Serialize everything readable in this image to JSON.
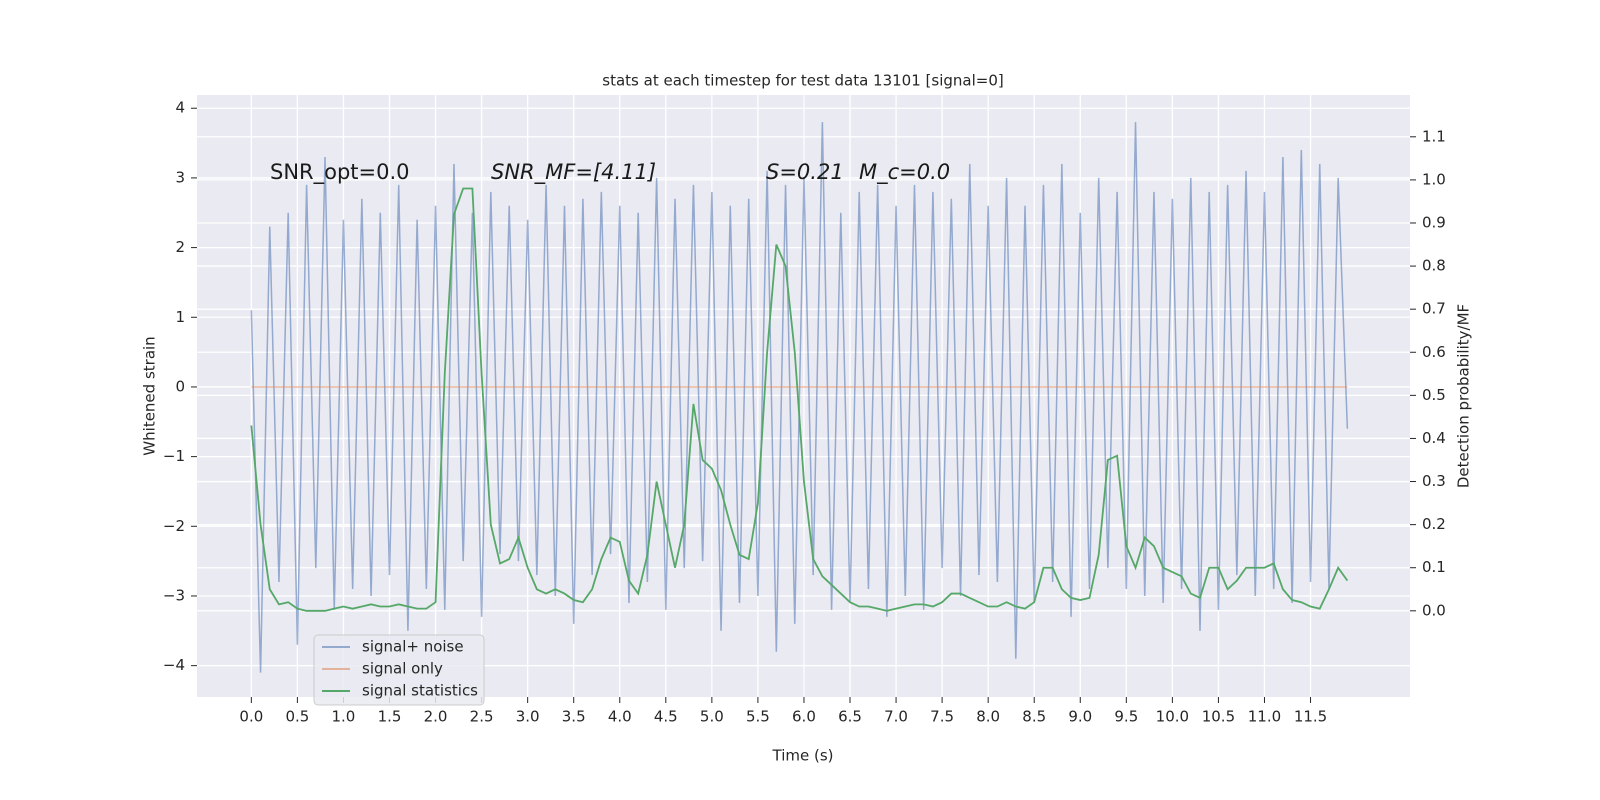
{
  "chart_data": {
    "type": "line",
    "title": "stats at each timestep for test data 13101 [signal=0]",
    "xlabel": "Time (s)",
    "ylabel": "Whitened strain",
    "y2label": "Detection probability/MF",
    "annotations": [
      "SNR_opt=0.0",
      "SNR_MF=[4.11]",
      "S=0.21",
      "M_c=0.0"
    ],
    "grid": true,
    "legend": "lower left",
    "xlim": [
      -0.59,
      12.58
    ],
    "ylim": [
      -4.45,
      4.19
    ],
    "y2lim": [
      -0.2,
      1.197
    ],
    "xticks": [
      {
        "value": 0,
        "label": "0.0"
      },
      {
        "value": 0.5,
        "label": "0.5"
      },
      {
        "value": 1,
        "label": "1.0"
      },
      {
        "value": 1.5,
        "label": "1.5"
      },
      {
        "value": 2,
        "label": "2.0"
      },
      {
        "value": 2.5,
        "label": "2.5"
      },
      {
        "value": 3,
        "label": "3.0"
      },
      {
        "value": 3.5,
        "label": "3.5"
      },
      {
        "value": 4,
        "label": "4.0"
      },
      {
        "value": 4.5,
        "label": "4.5"
      },
      {
        "value": 5,
        "label": "5.0"
      },
      {
        "value": 5.5,
        "label": "5.5"
      },
      {
        "value": 6,
        "label": "6.0"
      },
      {
        "value": 6.5,
        "label": "6.5"
      },
      {
        "value": 7,
        "label": "7.0"
      },
      {
        "value": 7.5,
        "label": "7.5"
      },
      {
        "value": 8,
        "label": "8.0"
      },
      {
        "value": 8.5,
        "label": "8.5"
      },
      {
        "value": 9,
        "label": "9.0"
      },
      {
        "value": 9.5,
        "label": "9.5"
      },
      {
        "value": 10,
        "label": "10.0"
      },
      {
        "value": 10.5,
        "label": "10.5"
      },
      {
        "value": 11,
        "label": "11.0"
      },
      {
        "value": 11.5,
        "label": "11.5"
      }
    ],
    "yticks": [
      {
        "value": -4,
        "label": "−4"
      },
      {
        "value": -3,
        "label": "−3"
      },
      {
        "value": -2,
        "label": "−2"
      },
      {
        "value": -1,
        "label": "−1"
      },
      0,
      1,
      2,
      3,
      4
    ],
    "y2ticks": [
      {
        "value": 0,
        "label": "0.0"
      },
      {
        "value": 0.1,
        "label": "0.1"
      },
      {
        "value": 0.2,
        "label": "0.2"
      },
      {
        "value": 0.3,
        "label": "0.3"
      },
      {
        "value": 0.4,
        "label": "0.4"
      },
      {
        "value": 0.5,
        "label": "0.5"
      },
      {
        "value": 0.6,
        "label": "0.6"
      },
      {
        "value": 0.7,
        "label": "0.7"
      },
      {
        "value": 0.8,
        "label": "0.8"
      },
      {
        "value": 0.9,
        "label": "0.9"
      },
      {
        "value": 1,
        "label": "1.0"
      },
      {
        "value": 1.1,
        "label": "1.1"
      }
    ],
    "x": [
      0,
      0.1,
      0.2,
      0.3,
      0.4,
      0.5,
      0.6,
      0.7,
      0.8,
      0.9,
      1,
      1.1,
      1.2,
      1.3,
      1.4,
      1.5,
      1.6,
      1.7,
      1.8,
      1.9,
      2,
      2.1,
      2.2,
      2.3,
      2.4,
      2.5,
      2.6,
      2.7,
      2.8,
      2.9,
      3,
      3.1,
      3.2,
      3.3,
      3.4,
      3.5,
      3.6,
      3.7,
      3.8,
      3.9,
      4,
      4.1,
      4.2,
      4.3,
      4.4,
      4.5,
      4.6,
      4.7,
      4.8,
      4.9,
      5,
      5.1,
      5.2,
      5.3,
      5.4,
      5.5,
      5.6,
      5.7,
      5.8,
      5.9,
      6,
      6.1,
      6.2,
      6.3,
      6.4,
      6.5,
      6.6,
      6.7,
      6.8,
      6.9,
      7,
      7.1,
      7.2,
      7.3,
      7.4,
      7.5,
      7.6,
      7.7,
      7.8,
      7.9,
      8,
      8.1,
      8.2,
      8.3,
      8.4,
      8.5,
      8.6,
      8.7,
      8.8,
      8.9,
      9,
      9.1,
      9.2,
      9.3,
      9.4,
      9.5,
      9.6,
      9.7,
      9.8,
      9.9,
      10,
      10.1,
      10.2,
      10.3,
      10.4,
      10.5,
      10.6,
      10.7,
      10.8,
      10.9,
      11,
      11.1,
      11.2,
      11.3,
      11.4,
      11.5,
      11.6,
      11.7,
      11.8,
      11.9
    ],
    "series": [
      {
        "name": "signal+ noise",
        "color": "#4c72b0",
        "values": [
          1.1,
          -4.1,
          2.3,
          -2.8,
          2.5,
          -3.7,
          2.9,
          -2.6,
          3.3,
          -3.2,
          2.4,
          -2.9,
          2.7,
          -3.0,
          2.5,
          -2.7,
          2.9,
          -3.5,
          2.4,
          -2.9,
          2.6,
          -3.2,
          3.2,
          -2.5,
          2.5,
          -3.3,
          2.8,
          -2.4,
          2.6,
          -2.5,
          2.4,
          -2.7,
          2.9,
          -3.0,
          2.6,
          -3.4,
          2.7,
          -2.7,
          2.8,
          -2.4,
          2.6,
          -3.1,
          2.5,
          -2.8,
          3.0,
          -3.2,
          2.7,
          -2.6,
          2.9,
          -2.5,
          2.8,
          -3.5,
          2.6,
          -3.1,
          2.7,
          -3.0,
          3.1,
          -3.8,
          2.9,
          -3.4,
          3.0,
          -2.7,
          3.8,
          -3.2,
          2.5,
          -3.1,
          2.8,
          -2.9,
          2.9,
          -3.3,
          2.6,
          -3.0,
          2.9,
          -3.2,
          2.8,
          -2.6,
          2.7,
          -3.0,
          3.2,
          -2.7,
          2.6,
          -2.8,
          3.0,
          -3.9,
          2.6,
          -3.1,
          2.9,
          -2.8,
          3.2,
          -3.3,
          2.5,
          -2.9,
          3.0,
          -2.6,
          2.8,
          -2.9,
          3.8,
          -3.0,
          2.8,
          -3.1,
          2.7,
          -2.9,
          3.0,
          -3.5,
          2.8,
          -3.2,
          2.9,
          -2.7,
          3.1,
          -3.0,
          2.8,
          -2.9,
          3.3,
          -3.1,
          3.4,
          -2.8,
          3.2,
          -2.9,
          3.0,
          -0.6
        ]
      },
      {
        "name": "signal only",
        "color": "#dd8452",
        "values": [
          0,
          0,
          0,
          0,
          0,
          0,
          0,
          0,
          0,
          0,
          0,
          0,
          0,
          0,
          0,
          0,
          0,
          0,
          0,
          0,
          0,
          0,
          0,
          0,
          0,
          0,
          0,
          0,
          0,
          0,
          0,
          0,
          0,
          0,
          0,
          0,
          0,
          0,
          0,
          0,
          0,
          0,
          0,
          0,
          0,
          0,
          0,
          0,
          0,
          0,
          0,
          0,
          0,
          0,
          0,
          0,
          0,
          0,
          0,
          0,
          0,
          0,
          0,
          0,
          0,
          0,
          0,
          0,
          0,
          0,
          0,
          0,
          0,
          0,
          0,
          0,
          0,
          0,
          0,
          0,
          0,
          0,
          0,
          0,
          0,
          0,
          0,
          0,
          0,
          0,
          0,
          0,
          0,
          0,
          0,
          0,
          0,
          0,
          0,
          0,
          0,
          0,
          0,
          0,
          0,
          0,
          0,
          0,
          0,
          0,
          0,
          0,
          0,
          0,
          0,
          0,
          0,
          0,
          0,
          0
        ]
      },
      {
        "name": "signal statistics",
        "color": "#55a868",
        "axis": "y2",
        "values": [
          0.43,
          0.2,
          0.05,
          0.015,
          0.02,
          0.005,
          0.0,
          0.0,
          0.0,
          0.005,
          0.01,
          0.005,
          0.01,
          0.015,
          0.01,
          0.01,
          0.015,
          0.01,
          0.005,
          0.005,
          0.02,
          0.55,
          0.92,
          0.98,
          0.98,
          0.55,
          0.2,
          0.11,
          0.12,
          0.17,
          0.1,
          0.05,
          0.04,
          0.05,
          0.04,
          0.025,
          0.02,
          0.05,
          0.12,
          0.17,
          0.16,
          0.07,
          0.04,
          0.13,
          0.3,
          0.2,
          0.1,
          0.2,
          0.48,
          0.35,
          0.33,
          0.28,
          0.2,
          0.13,
          0.12,
          0.25,
          0.6,
          0.85,
          0.8,
          0.6,
          0.3,
          0.12,
          0.08,
          0.06,
          0.04,
          0.02,
          0.01,
          0.01,
          0.005,
          0.0,
          0.005,
          0.01,
          0.015,
          0.015,
          0.01,
          0.02,
          0.04,
          0.04,
          0.03,
          0.02,
          0.01,
          0.01,
          0.02,
          0.01,
          0.005,
          0.02,
          0.1,
          0.1,
          0.05,
          0.03,
          0.025,
          0.03,
          0.13,
          0.35,
          0.36,
          0.15,
          0.1,
          0.17,
          0.15,
          0.1,
          0.09,
          0.08,
          0.04,
          0.03,
          0.1,
          0.1,
          0.05,
          0.07,
          0.1,
          0.1,
          0.1,
          0.11,
          0.05,
          0.025,
          0.02,
          0.01,
          0.005,
          0.05,
          0.1,
          0.07
        ]
      }
    ]
  }
}
